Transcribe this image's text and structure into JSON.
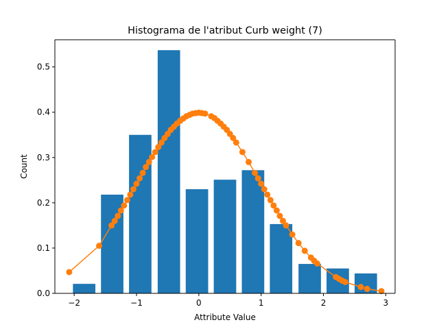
{
  "chart_data": {
    "type": "bar",
    "title": "Histograma de l'atribut Curb weight (7)",
    "xlabel": "Attribute Value",
    "ylabel": "Count",
    "xlim": [
      -2.31,
      3.15
    ],
    "ylim": [
      0,
      0.56
    ],
    "x_ticks": [
      -2,
      -1,
      0,
      1,
      2,
      3
    ],
    "x_tick_labels": [
      "−2",
      "−1",
      "0",
      "1",
      "2",
      "3"
    ],
    "y_ticks": [
      0.0,
      0.1,
      0.2,
      0.3,
      0.4,
      0.5
    ],
    "y_tick_labels": [
      "0.0",
      "0.1",
      "0.2",
      "0.3",
      "0.4",
      "0.5"
    ],
    "grid": false,
    "bar_color": "#1f77b4",
    "line_color": "#ff7f0e",
    "bars": {
      "centers": [
        -1.84,
        -1.39,
        -0.94,
        -0.48,
        -0.03,
        0.42,
        0.87,
        1.32,
        1.78,
        2.23,
        2.68
      ],
      "width": 0.36,
      "values": [
        0.021,
        0.218,
        0.35,
        0.537,
        0.23,
        0.251,
        0.272,
        0.153,
        0.065,
        0.055,
        0.044
      ]
    },
    "series": [
      {
        "type": "line",
        "x": [
          -2.08,
          -1.6,
          -1.4,
          -1.35,
          -1.3,
          -1.25,
          -1.2,
          -1.15,
          -1.1,
          -1.05,
          -1.0,
          -0.95,
          -0.9,
          -0.85,
          -0.8,
          -0.75,
          -0.7,
          -0.65,
          -0.6,
          -0.55,
          -0.5,
          -0.45,
          -0.4,
          -0.35,
          -0.3,
          -0.25,
          -0.2,
          -0.15,
          -0.1,
          -0.05,
          0.0,
          0.05,
          0.1,
          0.2,
          0.25,
          0.3,
          0.35,
          0.4,
          0.45,
          0.5,
          0.55,
          0.6,
          0.7,
          0.8,
          0.9,
          0.95,
          1.0,
          1.05,
          1.1,
          1.15,
          1.2,
          1.25,
          1.3,
          1.35,
          1.4,
          1.5,
          1.6,
          1.7,
          1.8,
          1.85,
          1.9,
          2.2,
          2.25,
          2.3,
          2.35,
          2.6,
          2.7,
          2.93
        ],
        "y": [
          0.047,
          0.105,
          0.15,
          0.16,
          0.171,
          0.183,
          0.194,
          0.206,
          0.218,
          0.23,
          0.242,
          0.254,
          0.266,
          0.279,
          0.29,
          0.301,
          0.312,
          0.323,
          0.333,
          0.343,
          0.352,
          0.361,
          0.368,
          0.375,
          0.381,
          0.386,
          0.391,
          0.394,
          0.397,
          0.398,
          0.399,
          0.398,
          0.397,
          0.391,
          0.387,
          0.381,
          0.375,
          0.368,
          0.361,
          0.352,
          0.343,
          0.333,
          0.312,
          0.29,
          0.266,
          0.254,
          0.242,
          0.23,
          0.218,
          0.206,
          0.194,
          0.183,
          0.171,
          0.16,
          0.15,
          0.13,
          0.111,
          0.094,
          0.079,
          0.072,
          0.066,
          0.036,
          0.032,
          0.028,
          0.025,
          0.014,
          0.01,
          0.005
        ]
      }
    ]
  }
}
